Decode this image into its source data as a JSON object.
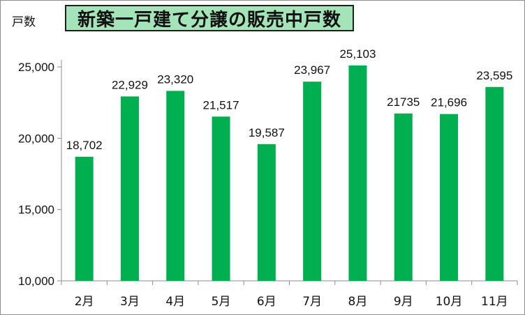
{
  "chart_data": {
    "type": "bar",
    "title": "新築一戸建て分譲の販売中戸数",
    "ylabel": "戸数",
    "xlabel": "",
    "categories": [
      "2月",
      "3月",
      "4月",
      "5月",
      "6月",
      "7月",
      "8月",
      "9月",
      "10月",
      "11月"
    ],
    "values": [
      18702,
      22929,
      23320,
      21517,
      19587,
      23967,
      25103,
      21735,
      21696,
      23595
    ],
    "value_labels": [
      "18,702",
      "22,929",
      "23,320",
      "21,517",
      "19,587",
      "23,967",
      "25,103",
      "21735",
      "21,696",
      "23,595"
    ],
    "ylim": [
      10000,
      25000
    ],
    "yticks": [
      10000,
      15000,
      20000,
      25000
    ],
    "ytick_labels": [
      "10,000",
      "15,000",
      "20,000",
      "25,000"
    ],
    "grid": false,
    "legend": "none",
    "bar_color": "#00b050",
    "title_bg_color": "#a3e4b8"
  }
}
